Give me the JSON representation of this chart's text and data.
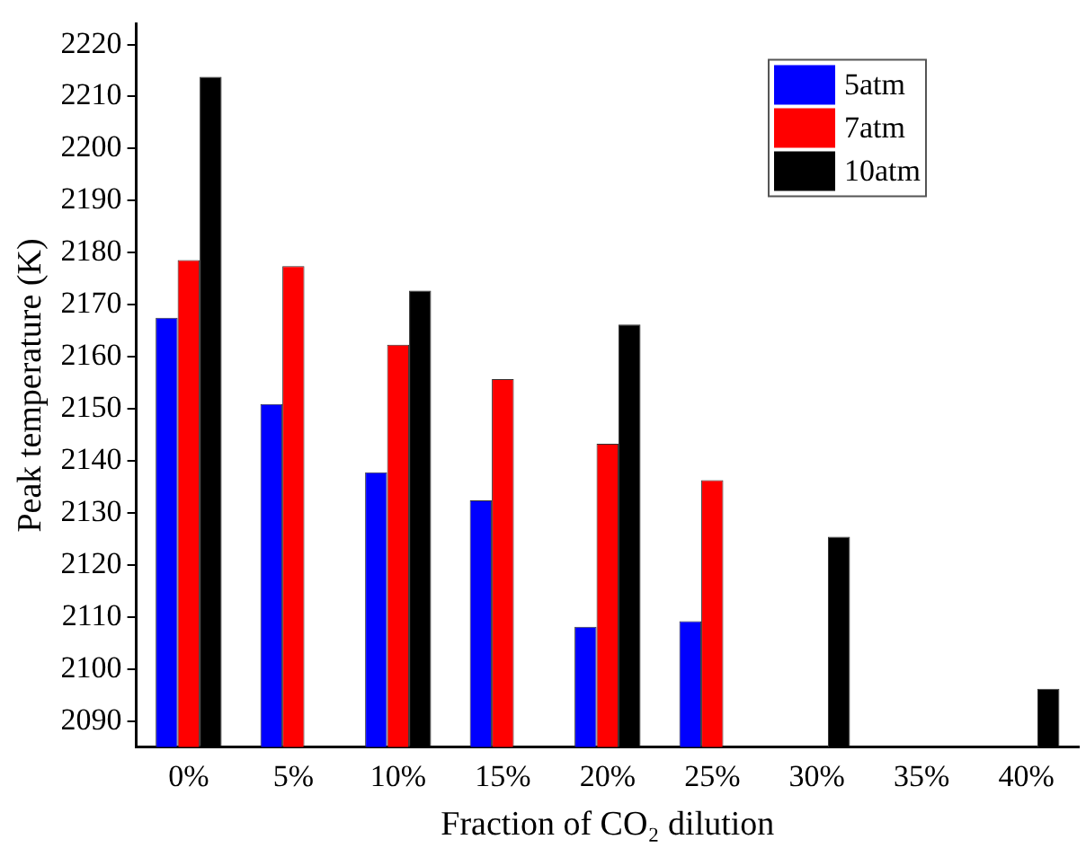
{
  "chart_data": {
    "type": "bar",
    "xlabel": "Fraction of CO₂ dilution",
    "ylabel": "Peak temperature (K)",
    "categories": [
      "0%",
      "5%",
      "10%",
      "15%",
      "20%",
      "25%",
      "30%",
      "35%",
      "40%"
    ],
    "series": [
      {
        "name": "5atm",
        "color": "#0000ff",
        "values": [
          2167.5,
          2150.9,
          2137.8,
          2132.4,
          2108.1,
          2109.2,
          null,
          null,
          null
        ]
      },
      {
        "name": "7atm",
        "color": "#ff0000",
        "values": [
          2178.6,
          2177.4,
          2162.3,
          2155.7,
          2143.3,
          2136.3,
          null,
          null,
          null
        ]
      },
      {
        "name": "10atm",
        "color": "#000000",
        "values": [
          2213.8,
          null,
          2172.7,
          null,
          2166.2,
          null,
          2125.4,
          null,
          2096.2
        ]
      }
    ],
    "ylim": [
      2085,
      2224
    ],
    "yticks": [
      2090,
      2100,
      2110,
      2120,
      2130,
      2140,
      2150,
      2160,
      2170,
      2180,
      2190,
      2200,
      2210,
      2220
    ],
    "grid": false,
    "legend": "top right"
  }
}
